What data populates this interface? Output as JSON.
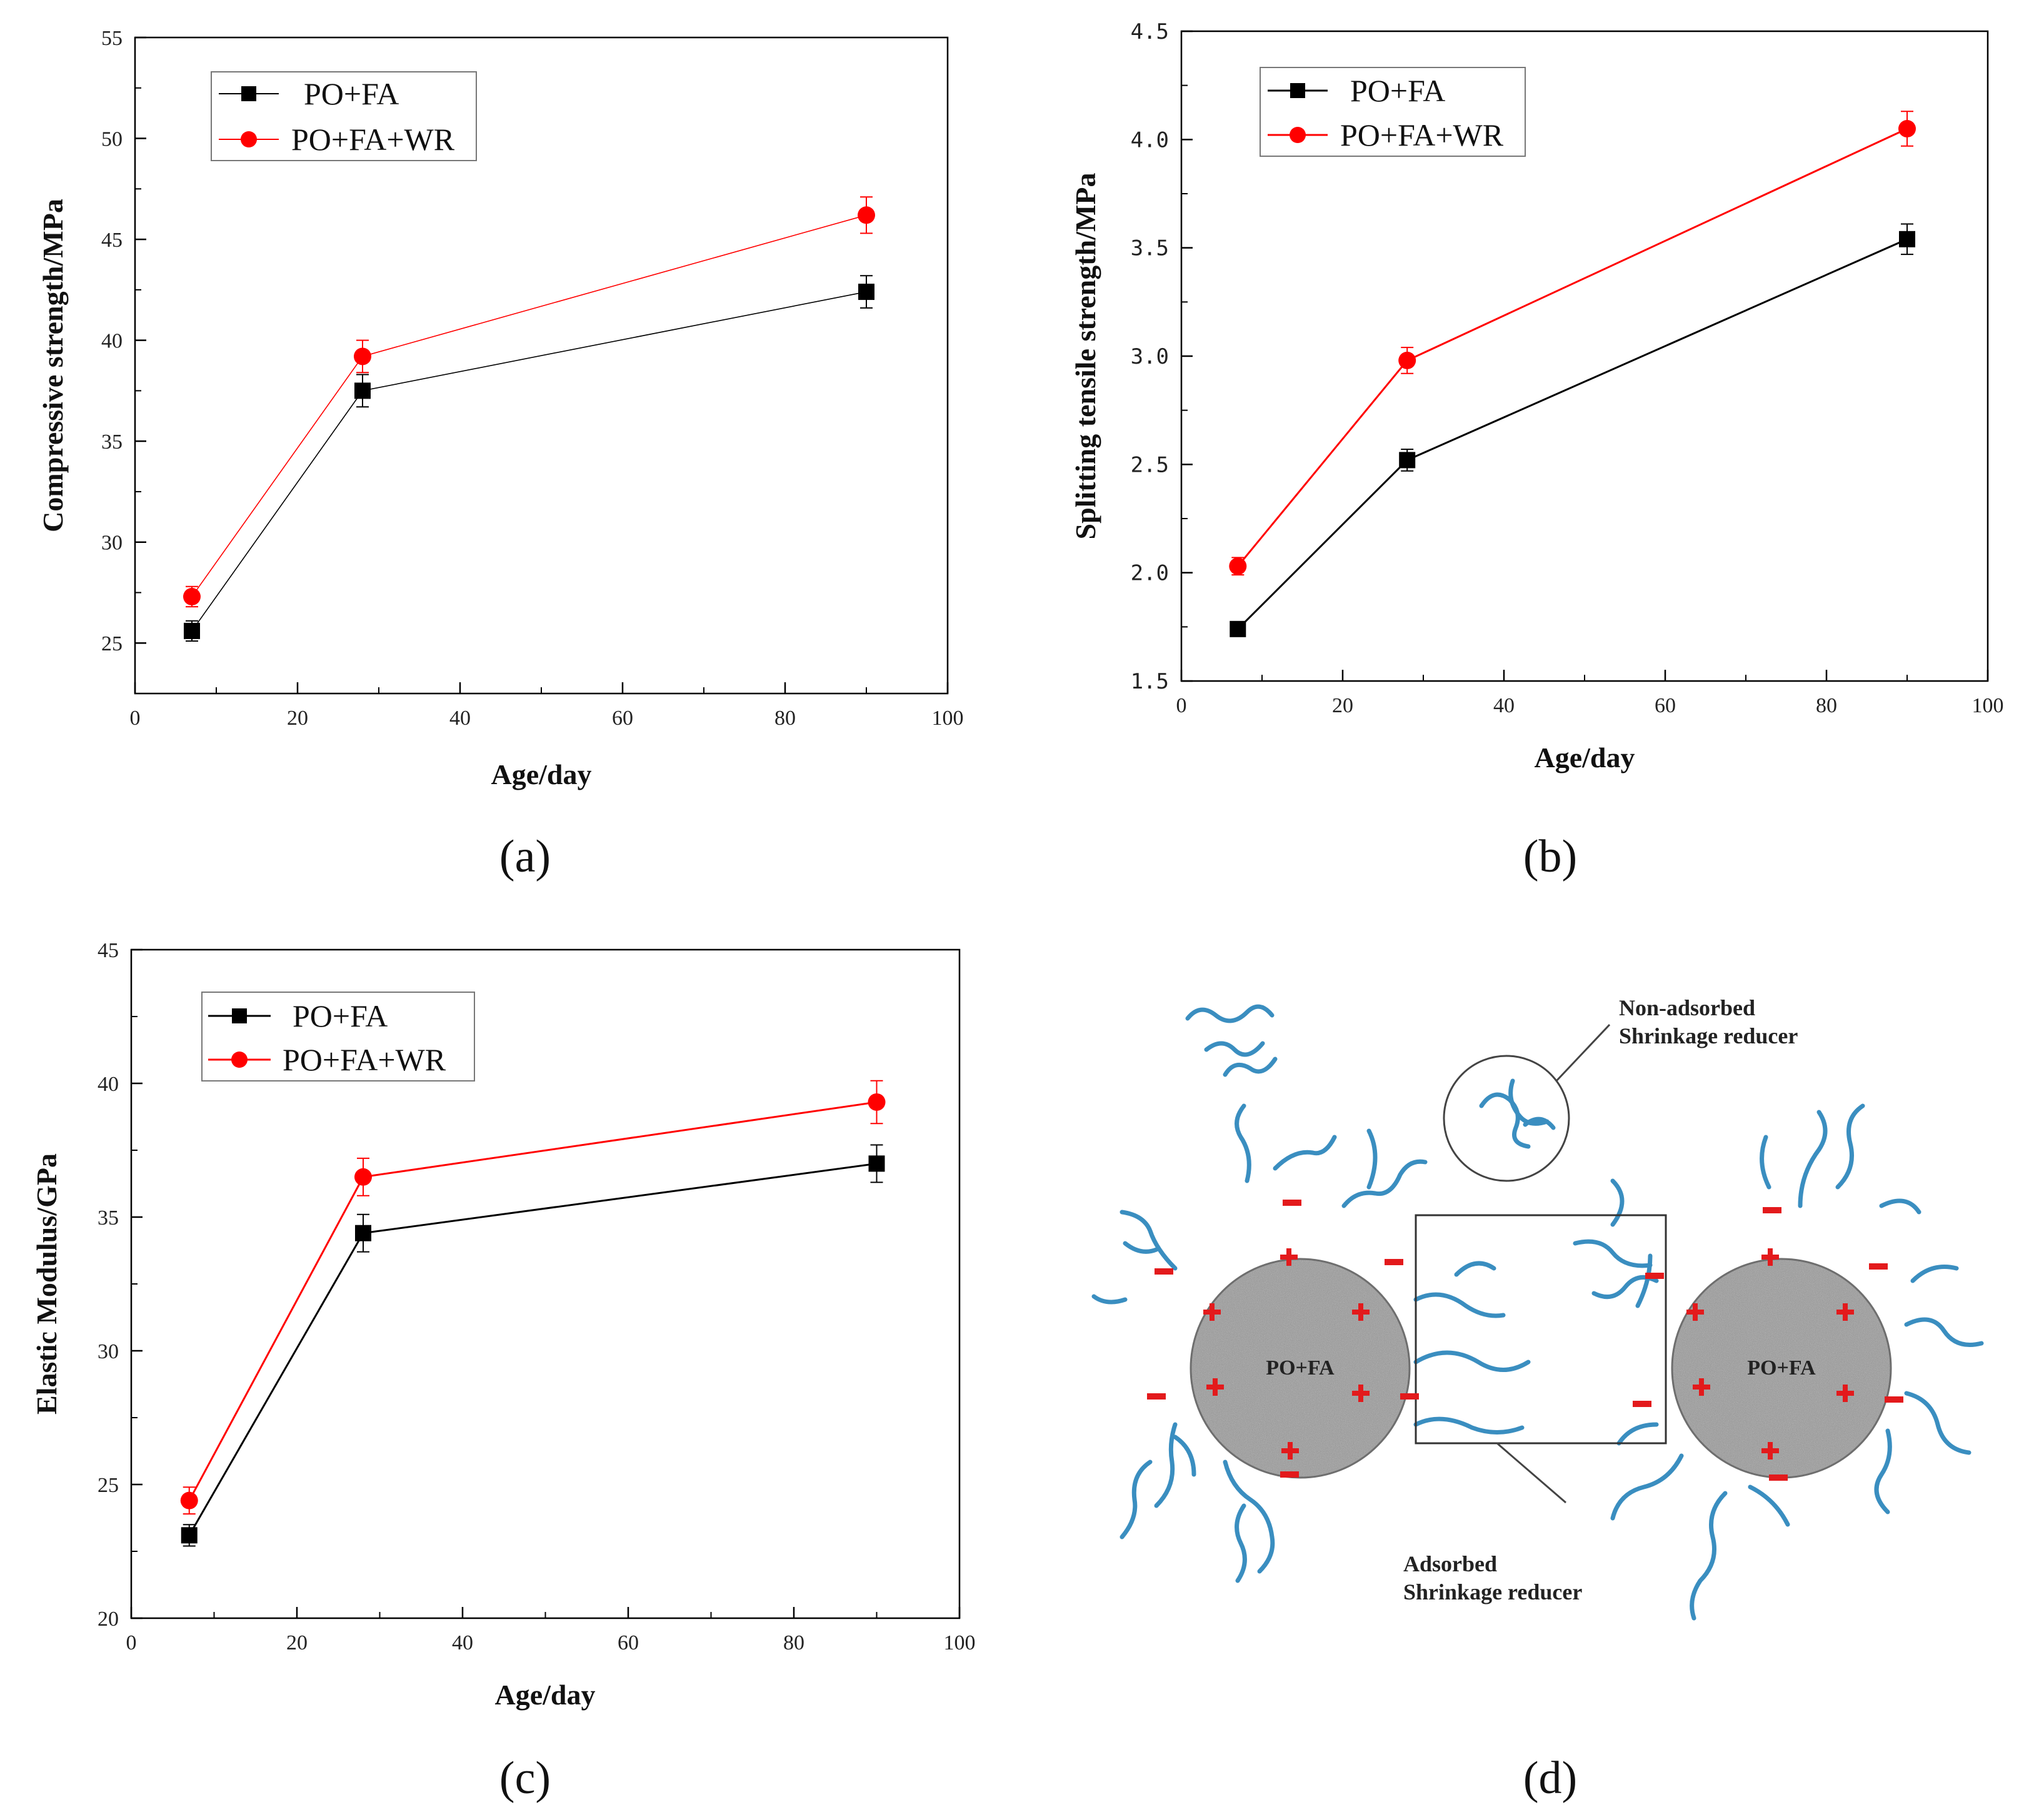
{
  "chart_data": [
    {
      "id": "a",
      "type": "line",
      "panel_label": "(a)",
      "xlabel": "Age/day",
      "ylabel": "Compressive strength/MPa",
      "xlim": [
        0,
        100
      ],
      "ylim": [
        22.5,
        55
      ],
      "x_ticks": [
        0,
        20,
        40,
        60,
        80,
        100
      ],
      "y_ticks": [
        25,
        30,
        35,
        40,
        45,
        50,
        55
      ],
      "legend_position": "top-left",
      "grid": false,
      "series": [
        {
          "name": "PO+FA",
          "color": "#000000",
          "marker": "square",
          "x": [
            7,
            28,
            90
          ],
          "y": [
            25.6,
            37.5,
            42.4
          ],
          "err": [
            0.5,
            0.8,
            0.8
          ]
        },
        {
          "name": "PO+FA+WR",
          "color": "#ff0000",
          "marker": "circle",
          "x": [
            7,
            28,
            90
          ],
          "y": [
            27.3,
            39.2,
            46.2
          ],
          "err": [
            0.5,
            0.8,
            0.9
          ]
        }
      ]
    },
    {
      "id": "b",
      "type": "line",
      "panel_label": "(b)",
      "xlabel": "Age/day",
      "ylabel": "Splitting tensile strength/MPa",
      "xlim": [
        0,
        100
      ],
      "ylim": [
        1.5,
        4.5
      ],
      "x_ticks": [
        0,
        20,
        40,
        60,
        80,
        100
      ],
      "y_ticks": [
        "1.5",
        "2.0",
        "2.5",
        "3.0",
        "3.5",
        "4.0",
        "4.5"
      ],
      "legend_position": "top-left",
      "grid": false,
      "series": [
        {
          "name": "PO+FA",
          "color": "#000000",
          "marker": "square",
          "x": [
            7,
            28,
            90
          ],
          "y": [
            1.74,
            2.52,
            3.54
          ],
          "err": [
            0.02,
            0.05,
            0.07
          ]
        },
        {
          "name": "PO+FA+WR",
          "color": "#ff0000",
          "marker": "circle",
          "x": [
            7,
            28,
            90
          ],
          "y": [
            2.03,
            2.98,
            4.05
          ],
          "err": [
            0.04,
            0.06,
            0.08
          ]
        }
      ]
    },
    {
      "id": "c",
      "type": "line",
      "panel_label": "(c)",
      "xlabel": "Age/day",
      "ylabel": "Elastic Modulus/GPa",
      "xlim": [
        0,
        100
      ],
      "ylim": [
        20,
        45
      ],
      "x_ticks": [
        0,
        20,
        40,
        60,
        80,
        100
      ],
      "y_ticks": [
        20,
        25,
        30,
        35,
        40,
        45
      ],
      "legend_position": "top-left",
      "grid": false,
      "series": [
        {
          "name": "PO+FA",
          "color": "#000000",
          "marker": "square",
          "x": [
            7,
            28,
            90
          ],
          "y": [
            23.1,
            34.4,
            37.0
          ],
          "err": [
            0.4,
            0.7,
            0.7
          ]
        },
        {
          "name": "PO+FA+WR",
          "color": "#ff0000",
          "marker": "circle",
          "x": [
            7,
            28,
            90
          ],
          "y": [
            24.4,
            36.5,
            39.3
          ],
          "err": [
            0.5,
            0.7,
            0.8
          ]
        }
      ]
    }
  ],
  "diagram": {
    "panel_label": "(d)",
    "non_adsorbed_line1": "Non-adsorbed",
    "non_adsorbed_line2": "Shrinkage reducer",
    "adsorbed_line1": "Adsorbed",
    "adsorbed_line2": "Shrinkage reducer",
    "particle_label": "PO+FA",
    "colors": {
      "polymer": "#3a8ec0",
      "charge": "#e31a1c",
      "particle": "#9a9a9a"
    }
  }
}
